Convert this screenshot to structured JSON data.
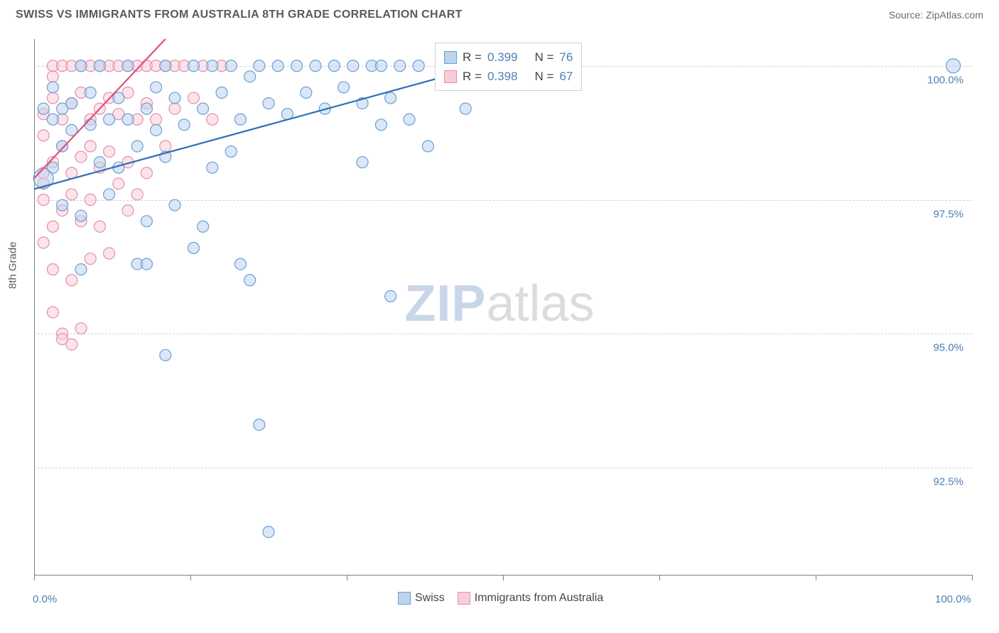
{
  "header": {
    "title": "SWISS VS IMMIGRANTS FROM AUSTRALIA 8TH GRADE CORRELATION CHART",
    "source": "Source: ZipAtlas.com"
  },
  "y_label": "8th Grade",
  "watermark": {
    "part1": "ZIP",
    "part2": "atlas"
  },
  "axes": {
    "xlim": [
      0,
      100
    ],
    "ylim": [
      90.5,
      100.5
    ],
    "x_ticks": [
      0,
      16.7,
      33.3,
      50,
      66.7,
      83.3,
      100
    ],
    "x_tick_labels": {
      "0": "0.0%",
      "100": "100.0%"
    },
    "y_gridlines": [
      92.5,
      95.0,
      97.5,
      100.0
    ],
    "y_tick_labels": {
      "92.5": "92.5%",
      "95.0": "95.0%",
      "97.5": "97.5%",
      "100.0": "100.0%"
    }
  },
  "colors": {
    "background": "#ffffff",
    "grid": "#d3d3d3",
    "axis": "#808080",
    "tick_text": "#4a7fb8",
    "label_text": "#5a5a5a",
    "series_blue_fill": "#bdd4ee",
    "series_blue_stroke": "#6a9fd4",
    "series_blue_line": "#2c6fbb",
    "series_pink_fill": "#f7cdd9",
    "series_pink_stroke": "#e58fa8",
    "series_pink_line": "#e04f7a"
  },
  "marker": {
    "radius": 8,
    "radius_large": 14,
    "fill_opacity": 0.55,
    "stroke_width": 1.2
  },
  "trend_lines": {
    "blue": {
      "x1": 0,
      "y1": 97.7,
      "x2": 50,
      "y2": 100.1
    },
    "pink": {
      "x1": 0,
      "y1": 97.9,
      "x2": 14,
      "y2": 100.5
    },
    "width": 2.2
  },
  "stats_box": {
    "rows": [
      {
        "color_key": "blue",
        "r_label": "R =",
        "r_val": "0.399",
        "n_label": "N =",
        "n_val": "76"
      },
      {
        "color_key": "pink",
        "r_label": "R =",
        "r_val": "0.398",
        "n_label": "N =",
        "n_val": "67"
      }
    ]
  },
  "legend": {
    "items": [
      {
        "color_key": "blue",
        "label": "Swiss"
      },
      {
        "color_key": "pink",
        "label": "Immigrants from Australia"
      }
    ]
  },
  "series": {
    "blue": [
      [
        1,
        97.9,
        14
      ],
      [
        1,
        99.2,
        8
      ],
      [
        2,
        98.1,
        8
      ],
      [
        2,
        99.6,
        8
      ],
      [
        2,
        99.0,
        8
      ],
      [
        3,
        99.2,
        8
      ],
      [
        3,
        98.5,
        8
      ],
      [
        3,
        97.4,
        8
      ],
      [
        4,
        98.8,
        8
      ],
      [
        4,
        99.3,
        8
      ],
      [
        5,
        100.0,
        8
      ],
      [
        5,
        97.2,
        8
      ],
      [
        5,
        96.2,
        8
      ],
      [
        6,
        98.9,
        8
      ],
      [
        6,
        99.5,
        8
      ],
      [
        7,
        100.0,
        8
      ],
      [
        7,
        98.2,
        8
      ],
      [
        8,
        99.0,
        8
      ],
      [
        8,
        97.6,
        8
      ],
      [
        9,
        99.4,
        8
      ],
      [
        9,
        98.1,
        8
      ],
      [
        10,
        100.0,
        8
      ],
      [
        10,
        99.0,
        8
      ],
      [
        11,
        96.3,
        8
      ],
      [
        11,
        98.5,
        8
      ],
      [
        12,
        99.2,
        8
      ],
      [
        12,
        96.3,
        8
      ],
      [
        12,
        97.1,
        8
      ],
      [
        13,
        98.8,
        8
      ],
      [
        13,
        99.6,
        8
      ],
      [
        14,
        100.0,
        8
      ],
      [
        14,
        98.3,
        8
      ],
      [
        14,
        94.6,
        8
      ],
      [
        15,
        99.4,
        8
      ],
      [
        15,
        97.4,
        8
      ],
      [
        16,
        98.9,
        8
      ],
      [
        17,
        100.0,
        8
      ],
      [
        17,
        96.6,
        8
      ],
      [
        18,
        99.2,
        8
      ],
      [
        18,
        97.0,
        8
      ],
      [
        19,
        100.0,
        8
      ],
      [
        19,
        98.1,
        8
      ],
      [
        20,
        99.5,
        8
      ],
      [
        21,
        100.0,
        8
      ],
      [
        21,
        98.4,
        8
      ],
      [
        22,
        99.0,
        8
      ],
      [
        22,
        96.3,
        8
      ],
      [
        23,
        99.8,
        8
      ],
      [
        23,
        96.0,
        8
      ],
      [
        24,
        100.0,
        8
      ],
      [
        24,
        93.3,
        8
      ],
      [
        25,
        99.3,
        8
      ],
      [
        25,
        91.3,
        8
      ],
      [
        26,
        100.0,
        8
      ],
      [
        27,
        99.1,
        8
      ],
      [
        28,
        100.0,
        8
      ],
      [
        29,
        99.5,
        8
      ],
      [
        30,
        100.0,
        8
      ],
      [
        31,
        99.2,
        8
      ],
      [
        32,
        100.0,
        8
      ],
      [
        33,
        99.6,
        8
      ],
      [
        34,
        100.0,
        8
      ],
      [
        35,
        99.3,
        8
      ],
      [
        35,
        98.2,
        8
      ],
      [
        36,
        100.0,
        8
      ],
      [
        37,
        98.9,
        8
      ],
      [
        37,
        100.0,
        8
      ],
      [
        38,
        99.4,
        8
      ],
      [
        38,
        95.7,
        8
      ],
      [
        39,
        100.0,
        8
      ],
      [
        40,
        99.0,
        8
      ],
      [
        41,
        100.0,
        8
      ],
      [
        42,
        98.5,
        8
      ],
      [
        44,
        100.0,
        8
      ],
      [
        46,
        99.2,
        8
      ],
      [
        98,
        100.0,
        10
      ]
    ],
    "pink": [
      [
        1,
        98.0,
        8
      ],
      [
        1,
        99.1,
        8
      ],
      [
        1,
        97.5,
        8
      ],
      [
        1,
        96.7,
        8
      ],
      [
        2,
        99.4,
        8
      ],
      [
        2,
        98.2,
        8
      ],
      [
        2,
        100.0,
        8
      ],
      [
        2,
        97.0,
        8
      ],
      [
        2,
        95.4,
        8
      ],
      [
        3,
        99.0,
        8
      ],
      [
        3,
        98.5,
        8
      ],
      [
        3,
        100.0,
        8
      ],
      [
        3,
        97.3,
        8
      ],
      [
        3,
        95.0,
        8
      ],
      [
        4,
        99.3,
        8
      ],
      [
        4,
        98.0,
        8
      ],
      [
        4,
        100.0,
        8
      ],
      [
        4,
        97.6,
        8
      ],
      [
        4,
        96.0,
        8
      ],
      [
        5,
        99.5,
        8
      ],
      [
        5,
        98.3,
        8
      ],
      [
        5,
        100.0,
        8
      ],
      [
        5,
        97.1,
        8
      ],
      [
        5,
        95.1,
        8
      ],
      [
        6,
        99.0,
        8
      ],
      [
        6,
        98.5,
        8
      ],
      [
        6,
        100.0,
        8
      ],
      [
        6,
        97.5,
        8
      ],
      [
        6,
        96.4,
        8
      ],
      [
        7,
        99.2,
        8
      ],
      [
        7,
        98.1,
        8
      ],
      [
        7,
        100.0,
        8
      ],
      [
        7,
        97.0,
        8
      ],
      [
        8,
        99.4,
        8
      ],
      [
        8,
        98.4,
        8
      ],
      [
        8,
        100.0,
        8
      ],
      [
        8,
        96.5,
        8
      ],
      [
        9,
        99.1,
        8
      ],
      [
        9,
        97.8,
        8
      ],
      [
        9,
        100.0,
        8
      ],
      [
        10,
        99.5,
        8
      ],
      [
        10,
        98.2,
        8
      ],
      [
        10,
        100.0,
        8
      ],
      [
        10,
        97.3,
        8
      ],
      [
        11,
        99.0,
        8
      ],
      [
        11,
        100.0,
        8
      ],
      [
        11,
        97.6,
        8
      ],
      [
        12,
        99.3,
        8
      ],
      [
        12,
        100.0,
        8
      ],
      [
        12,
        98.0,
        8
      ],
      [
        13,
        100.0,
        8
      ],
      [
        13,
        99.0,
        8
      ],
      [
        14,
        100.0,
        8
      ],
      [
        14,
        98.5,
        8
      ],
      [
        15,
        100.0,
        8
      ],
      [
        15,
        99.2,
        8
      ],
      [
        16,
        100.0,
        8
      ],
      [
        17,
        99.4,
        8
      ],
      [
        18,
        100.0,
        8
      ],
      [
        19,
        99.0,
        8
      ],
      [
        20,
        100.0,
        8
      ],
      [
        3,
        94.9,
        8
      ],
      [
        4,
        94.8,
        8
      ],
      [
        2,
        96.2,
        8
      ],
      [
        1,
        97.8,
        8
      ],
      [
        1,
        98.7,
        8
      ],
      [
        2,
        99.8,
        8
      ]
    ]
  }
}
